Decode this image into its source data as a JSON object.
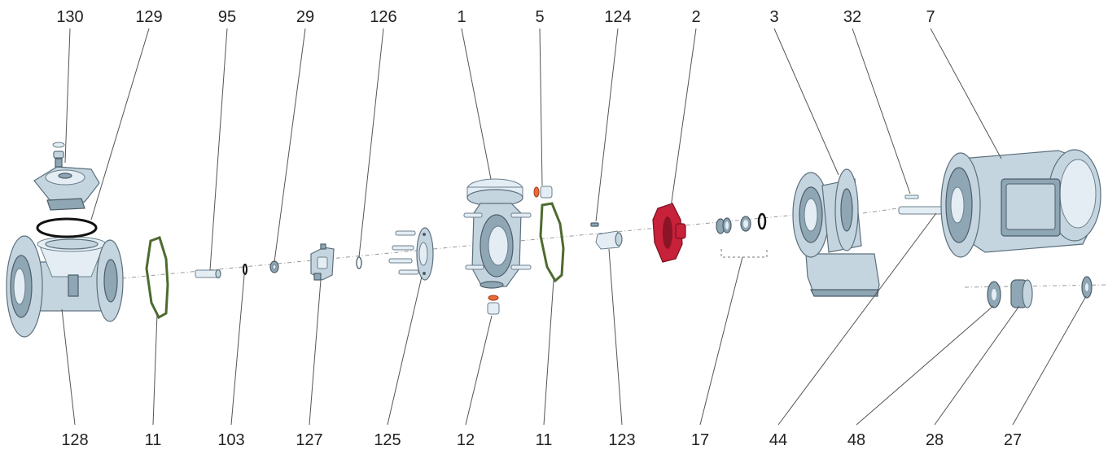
{
  "diagram": {
    "top_labels": [
      "130",
      "129",
      "95",
      "29",
      "126",
      "1",
      "5",
      "124",
      "2",
      "3",
      "32",
      "7"
    ],
    "bottom_labels": [
      "128",
      "11",
      "103",
      "127",
      "125",
      "12",
      "11",
      "123",
      "17",
      "44",
      "48",
      "28",
      "27"
    ],
    "colors": {
      "casing": "#c4d5e0",
      "impeller": "#c8213a",
      "gasket": "#4d6b2e",
      "o_ring": "#111111",
      "seal_accent": "#e86a3a"
    }
  }
}
